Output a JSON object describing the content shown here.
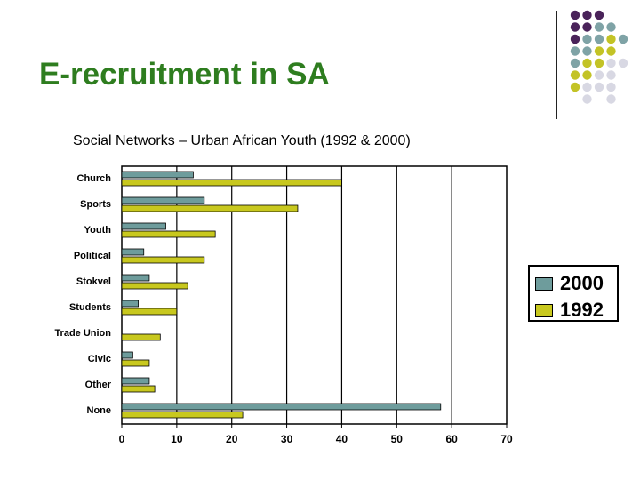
{
  "slide": {
    "title": "E-recruitment in SA",
    "subtitle": "Social Networks – Urban African Youth (1992 & 2000)"
  },
  "colors": {
    "title": "#2e7d1f",
    "series_2000": "#6e9c9c",
    "series_1992": "#c8c81e",
    "dot_purple": "#4a235a",
    "dot_teal": "#7fa3a6",
    "dot_olive": "#c3c326",
    "dot_light": "#d8d8e3"
  },
  "chart_data": {
    "type": "bar",
    "orientation": "horizontal",
    "categories": [
      "Church",
      "Sports",
      "Youth",
      "Political",
      "Stokvel",
      "Students",
      "Trade Union",
      "Civic",
      "Other",
      "None"
    ],
    "series": [
      {
        "name": "2000",
        "values": [
          13,
          15,
          8,
          4,
          5,
          3,
          0,
          2,
          5,
          58
        ]
      },
      {
        "name": "1992",
        "values": [
          40,
          32,
          17,
          15,
          12,
          10,
          7,
          5,
          6,
          22
        ]
      }
    ],
    "xlim": [
      0,
      70
    ],
    "xticks": [
      "0",
      "10",
      "20",
      "30",
      "40",
      "50",
      "60",
      "70"
    ],
    "grid": "vertical",
    "legend_position": "right"
  }
}
